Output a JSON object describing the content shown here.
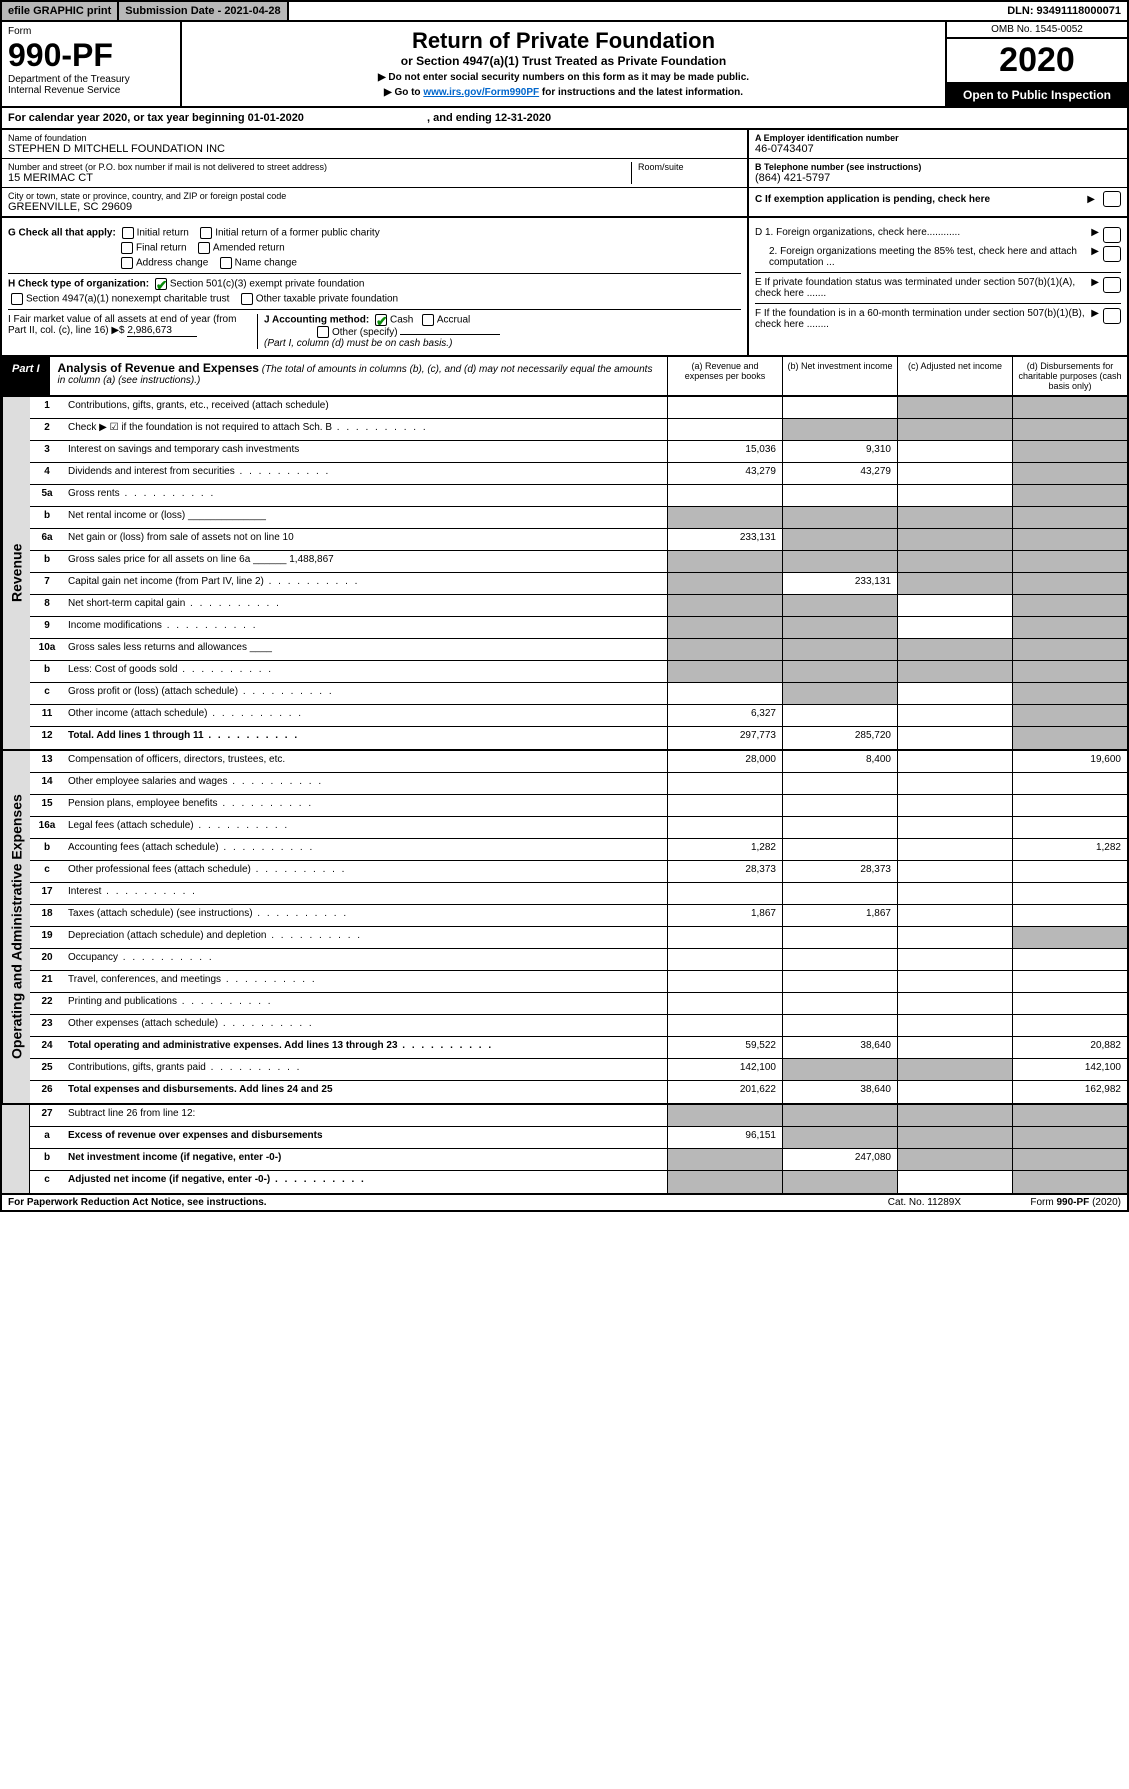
{
  "topbar": {
    "efile": "efile GRAPHIC print",
    "subdate_label": "Submission Date - 2021-04-28",
    "dln": "DLN: 93491118000071"
  },
  "header": {
    "form_word": "Form",
    "form_no": "990-PF",
    "dept": "Department of the Treasury",
    "irs": "Internal Revenue Service",
    "title": "Return of Private Foundation",
    "subtitle": "or Section 4947(a)(1) Trust Treated as Private Foundation",
    "inst1": "▶ Do not enter social security numbers on this form as it may be made public.",
    "inst2_pre": "▶ Go to ",
    "inst2_link": "www.irs.gov/Form990PF",
    "inst2_post": " for instructions and the latest information.",
    "omb": "OMB No. 1545-0052",
    "year": "2020",
    "open": "Open to Public Inspection"
  },
  "calyear": {
    "text_pre": "For calendar year 2020, or tax year beginning ",
    "begin": "01-01-2020",
    "mid": " , and ending ",
    "end": "12-31-2020"
  },
  "info": {
    "name_lbl": "Name of foundation",
    "name": "STEPHEN D MITCHELL FOUNDATION INC",
    "addr_lbl": "Number and street (or P.O. box number if mail is not delivered to street address)",
    "room_lbl": "Room/suite",
    "addr": "15 MERIMAC CT",
    "city_lbl": "City or town, state or province, country, and ZIP or foreign postal code",
    "city": "GREENVILLE, SC  29609",
    "ein_lbl": "A Employer identification number",
    "ein": "46-0743407",
    "tel_lbl": "B Telephone number (see instructions)",
    "tel": "(864) 421-5797",
    "c_lbl": "C If exemption application is pending, check here"
  },
  "checks": {
    "g_lbl": "G Check all that apply:",
    "g_opts": [
      "Initial return",
      "Initial return of a former public charity",
      "Final return",
      "Amended return",
      "Address change",
      "Name change"
    ],
    "h_lbl": "H Check type of organization:",
    "h_opt1": "Section 501(c)(3) exempt private foundation",
    "h_opt2": "Section 4947(a)(1) nonexempt charitable trust",
    "h_opt3": "Other taxable private foundation",
    "i_lbl": "I Fair market value of all assets at end of year (from Part II, col. (c), line 16) ▶$",
    "i_val": "2,986,673",
    "j_lbl": "J Accounting method:",
    "j_cash": "Cash",
    "j_accrual": "Accrual",
    "j_other": "Other (specify)",
    "j_note": "(Part I, column (d) must be on cash basis.)",
    "d1": "D 1. Foreign organizations, check here............",
    "d2": "2. Foreign organizations meeting the 85% test, check here and attach computation ...",
    "e": "E  If private foundation status was terminated under section 507(b)(1)(A), check here .......",
    "f": "F  If the foundation is in a 60-month termination under section 507(b)(1)(B), check here ........"
  },
  "part1": {
    "label": "Part I",
    "title": "Analysis of Revenue and Expenses",
    "note": "(The total of amounts in columns (b), (c), and (d) may not necessarily equal the amounts in column (a) (see instructions).)",
    "col_a": "(a)   Revenue and expenses per books",
    "col_b": "(b)  Net investment income",
    "col_c": "(c)  Adjusted net income",
    "col_d": "(d)  Disbursements for charitable purposes (cash basis only)"
  },
  "sections": {
    "revenue": "Revenue",
    "expenses": "Operating and Administrative Expenses"
  },
  "rows": [
    {
      "n": "1",
      "d": "Contributions, gifts, grants, etc., received (attach schedule)",
      "a": "",
      "b": "",
      "c": "s",
      "ds": "s"
    },
    {
      "n": "2",
      "d": "Check ▶ ☑ if the foundation is not required to attach Sch. B",
      "a": "",
      "b": "s",
      "c": "s",
      "ds": "s",
      "dots": true
    },
    {
      "n": "3",
      "d": "Interest on savings and temporary cash investments",
      "a": "15,036",
      "b": "9,310",
      "c": "",
      "ds": "s"
    },
    {
      "n": "4",
      "d": "Dividends and interest from securities",
      "a": "43,279",
      "b": "43,279",
      "c": "",
      "ds": "s",
      "dots": true
    },
    {
      "n": "5a",
      "d": "Gross rents",
      "a": "",
      "b": "",
      "c": "",
      "ds": "s",
      "dots": true
    },
    {
      "n": "b",
      "d": "Net rental income or (loss)  ______________",
      "a": "s",
      "b": "s",
      "c": "s",
      "ds": "s"
    },
    {
      "n": "6a",
      "d": "Net gain or (loss) from sale of assets not on line 10",
      "a": "233,131",
      "b": "s",
      "c": "s",
      "ds": "s"
    },
    {
      "n": "b",
      "d": "Gross sales price for all assets on line 6a ______ 1,488,867",
      "a": "s",
      "b": "s",
      "c": "s",
      "ds": "s"
    },
    {
      "n": "7",
      "d": "Capital gain net income (from Part IV, line 2)",
      "a": "s",
      "b": "233,131",
      "c": "s",
      "ds": "s",
      "dots": true
    },
    {
      "n": "8",
      "d": "Net short-term capital gain",
      "a": "s",
      "b": "s",
      "c": "",
      "ds": "s",
      "dots": true
    },
    {
      "n": "9",
      "d": "Income modifications",
      "a": "s",
      "b": "s",
      "c": "",
      "ds": "s",
      "dots": true
    },
    {
      "n": "10a",
      "d": "Gross sales less returns and allowances  ____",
      "a": "s",
      "b": "s",
      "c": "s",
      "ds": "s"
    },
    {
      "n": "b",
      "d": "Less: Cost of goods sold",
      "a": "s",
      "b": "s",
      "c": "s",
      "ds": "s",
      "dots": true
    },
    {
      "n": "c",
      "d": "Gross profit or (loss) (attach schedule)",
      "a": "",
      "b": "s",
      "c": "",
      "ds": "s",
      "dots": true
    },
    {
      "n": "11",
      "d": "Other income (attach schedule)",
      "a": "6,327",
      "b": "",
      "c": "",
      "ds": "s",
      "dots": true
    },
    {
      "n": "12",
      "d": "Total. Add lines 1 through 11",
      "a": "297,773",
      "b": "285,720",
      "c": "",
      "ds": "s",
      "bold": true,
      "dots": true
    }
  ],
  "rows2": [
    {
      "n": "13",
      "d": "Compensation of officers, directors, trustees, etc.",
      "a": "28,000",
      "b": "8,400",
      "c": "",
      "ds": "19,600"
    },
    {
      "n": "14",
      "d": "Other employee salaries and wages",
      "a": "",
      "b": "",
      "c": "",
      "ds": "",
      "dots": true
    },
    {
      "n": "15",
      "d": "Pension plans, employee benefits",
      "a": "",
      "b": "",
      "c": "",
      "ds": "",
      "dots": true
    },
    {
      "n": "16a",
      "d": "Legal fees (attach schedule)",
      "a": "",
      "b": "",
      "c": "",
      "ds": "",
      "dots": true
    },
    {
      "n": "b",
      "d": "Accounting fees (attach schedule)",
      "a": "1,282",
      "b": "",
      "c": "",
      "ds": "1,282",
      "dots": true
    },
    {
      "n": "c",
      "d": "Other professional fees (attach schedule)",
      "a": "28,373",
      "b": "28,373",
      "c": "",
      "ds": "",
      "dots": true
    },
    {
      "n": "17",
      "d": "Interest",
      "a": "",
      "b": "",
      "c": "",
      "ds": "",
      "dots": true
    },
    {
      "n": "18",
      "d": "Taxes (attach schedule) (see instructions)",
      "a": "1,867",
      "b": "1,867",
      "c": "",
      "ds": "",
      "dots": true
    },
    {
      "n": "19",
      "d": "Depreciation (attach schedule) and depletion",
      "a": "",
      "b": "",
      "c": "",
      "ds": "s",
      "dots": true
    },
    {
      "n": "20",
      "d": "Occupancy",
      "a": "",
      "b": "",
      "c": "",
      "ds": "",
      "dots": true
    },
    {
      "n": "21",
      "d": "Travel, conferences, and meetings",
      "a": "",
      "b": "",
      "c": "",
      "ds": "",
      "dots": true
    },
    {
      "n": "22",
      "d": "Printing and publications",
      "a": "",
      "b": "",
      "c": "",
      "ds": "",
      "dots": true
    },
    {
      "n": "23",
      "d": "Other expenses (attach schedule)",
      "a": "",
      "b": "",
      "c": "",
      "ds": "",
      "dots": true
    },
    {
      "n": "24",
      "d": "Total operating and administrative expenses. Add lines 13 through 23",
      "a": "59,522",
      "b": "38,640",
      "c": "",
      "ds": "20,882",
      "bold": true,
      "dots": true
    },
    {
      "n": "25",
      "d": "Contributions, gifts, grants paid",
      "a": "142,100",
      "b": "s",
      "c": "s",
      "ds": "142,100",
      "dots": true
    },
    {
      "n": "26",
      "d": "Total expenses and disbursements. Add lines 24 and 25",
      "a": "201,622",
      "b": "38,640",
      "c": "",
      "ds": "162,982",
      "bold": true
    }
  ],
  "rows3": [
    {
      "n": "27",
      "d": "Subtract line 26 from line 12:",
      "a": "s",
      "b": "s",
      "c": "s",
      "ds": "s"
    },
    {
      "n": "a",
      "d": "Excess of revenue over expenses and disbursements",
      "a": "96,151",
      "b": "s",
      "c": "s",
      "ds": "s",
      "bold": true
    },
    {
      "n": "b",
      "d": "Net investment income (if negative, enter -0-)",
      "a": "s",
      "b": "247,080",
      "c": "s",
      "ds": "s",
      "bold": true
    },
    {
      "n": "c",
      "d": "Adjusted net income (if negative, enter -0-)",
      "a": "s",
      "b": "s",
      "c": "",
      "ds": "s",
      "bold": true,
      "dots": true
    }
  ],
  "footer": {
    "left": "For Paperwork Reduction Act Notice, see instructions.",
    "mid": "Cat. No. 11289X",
    "right": "Form 990-PF (2020)"
  }
}
